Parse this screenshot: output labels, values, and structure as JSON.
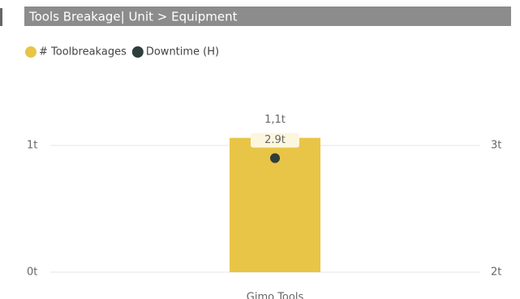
{
  "chart_data": {
    "type": "combo",
    "title": "Tools Breakage| Unit > Equipment",
    "categories": [
      "Gimo Tools"
    ],
    "series": [
      {
        "name": "# Toolbreakages",
        "color": "#e8c547",
        "type": "bar",
        "values": [
          1060
        ],
        "value_labels": [
          "1,1t"
        ]
      },
      {
        "name": "Downtime (H)",
        "color": "#2f3d3c",
        "type": "point",
        "axis": "y2",
        "values": [
          2900
        ],
        "value_labels": [
          "2.9t"
        ]
      }
    ],
    "ylim": [
      0,
      1400
    ],
    "yticks": [
      {
        "value": 0,
        "label": "0t"
      },
      {
        "value": 1000,
        "label": "1t"
      }
    ],
    "y2lim": [
      2000,
      3400
    ],
    "y2ticks": [
      {
        "value": 2000,
        "label": "2t"
      },
      {
        "value": 3000,
        "label": "3t"
      }
    ],
    "grid": true
  }
}
